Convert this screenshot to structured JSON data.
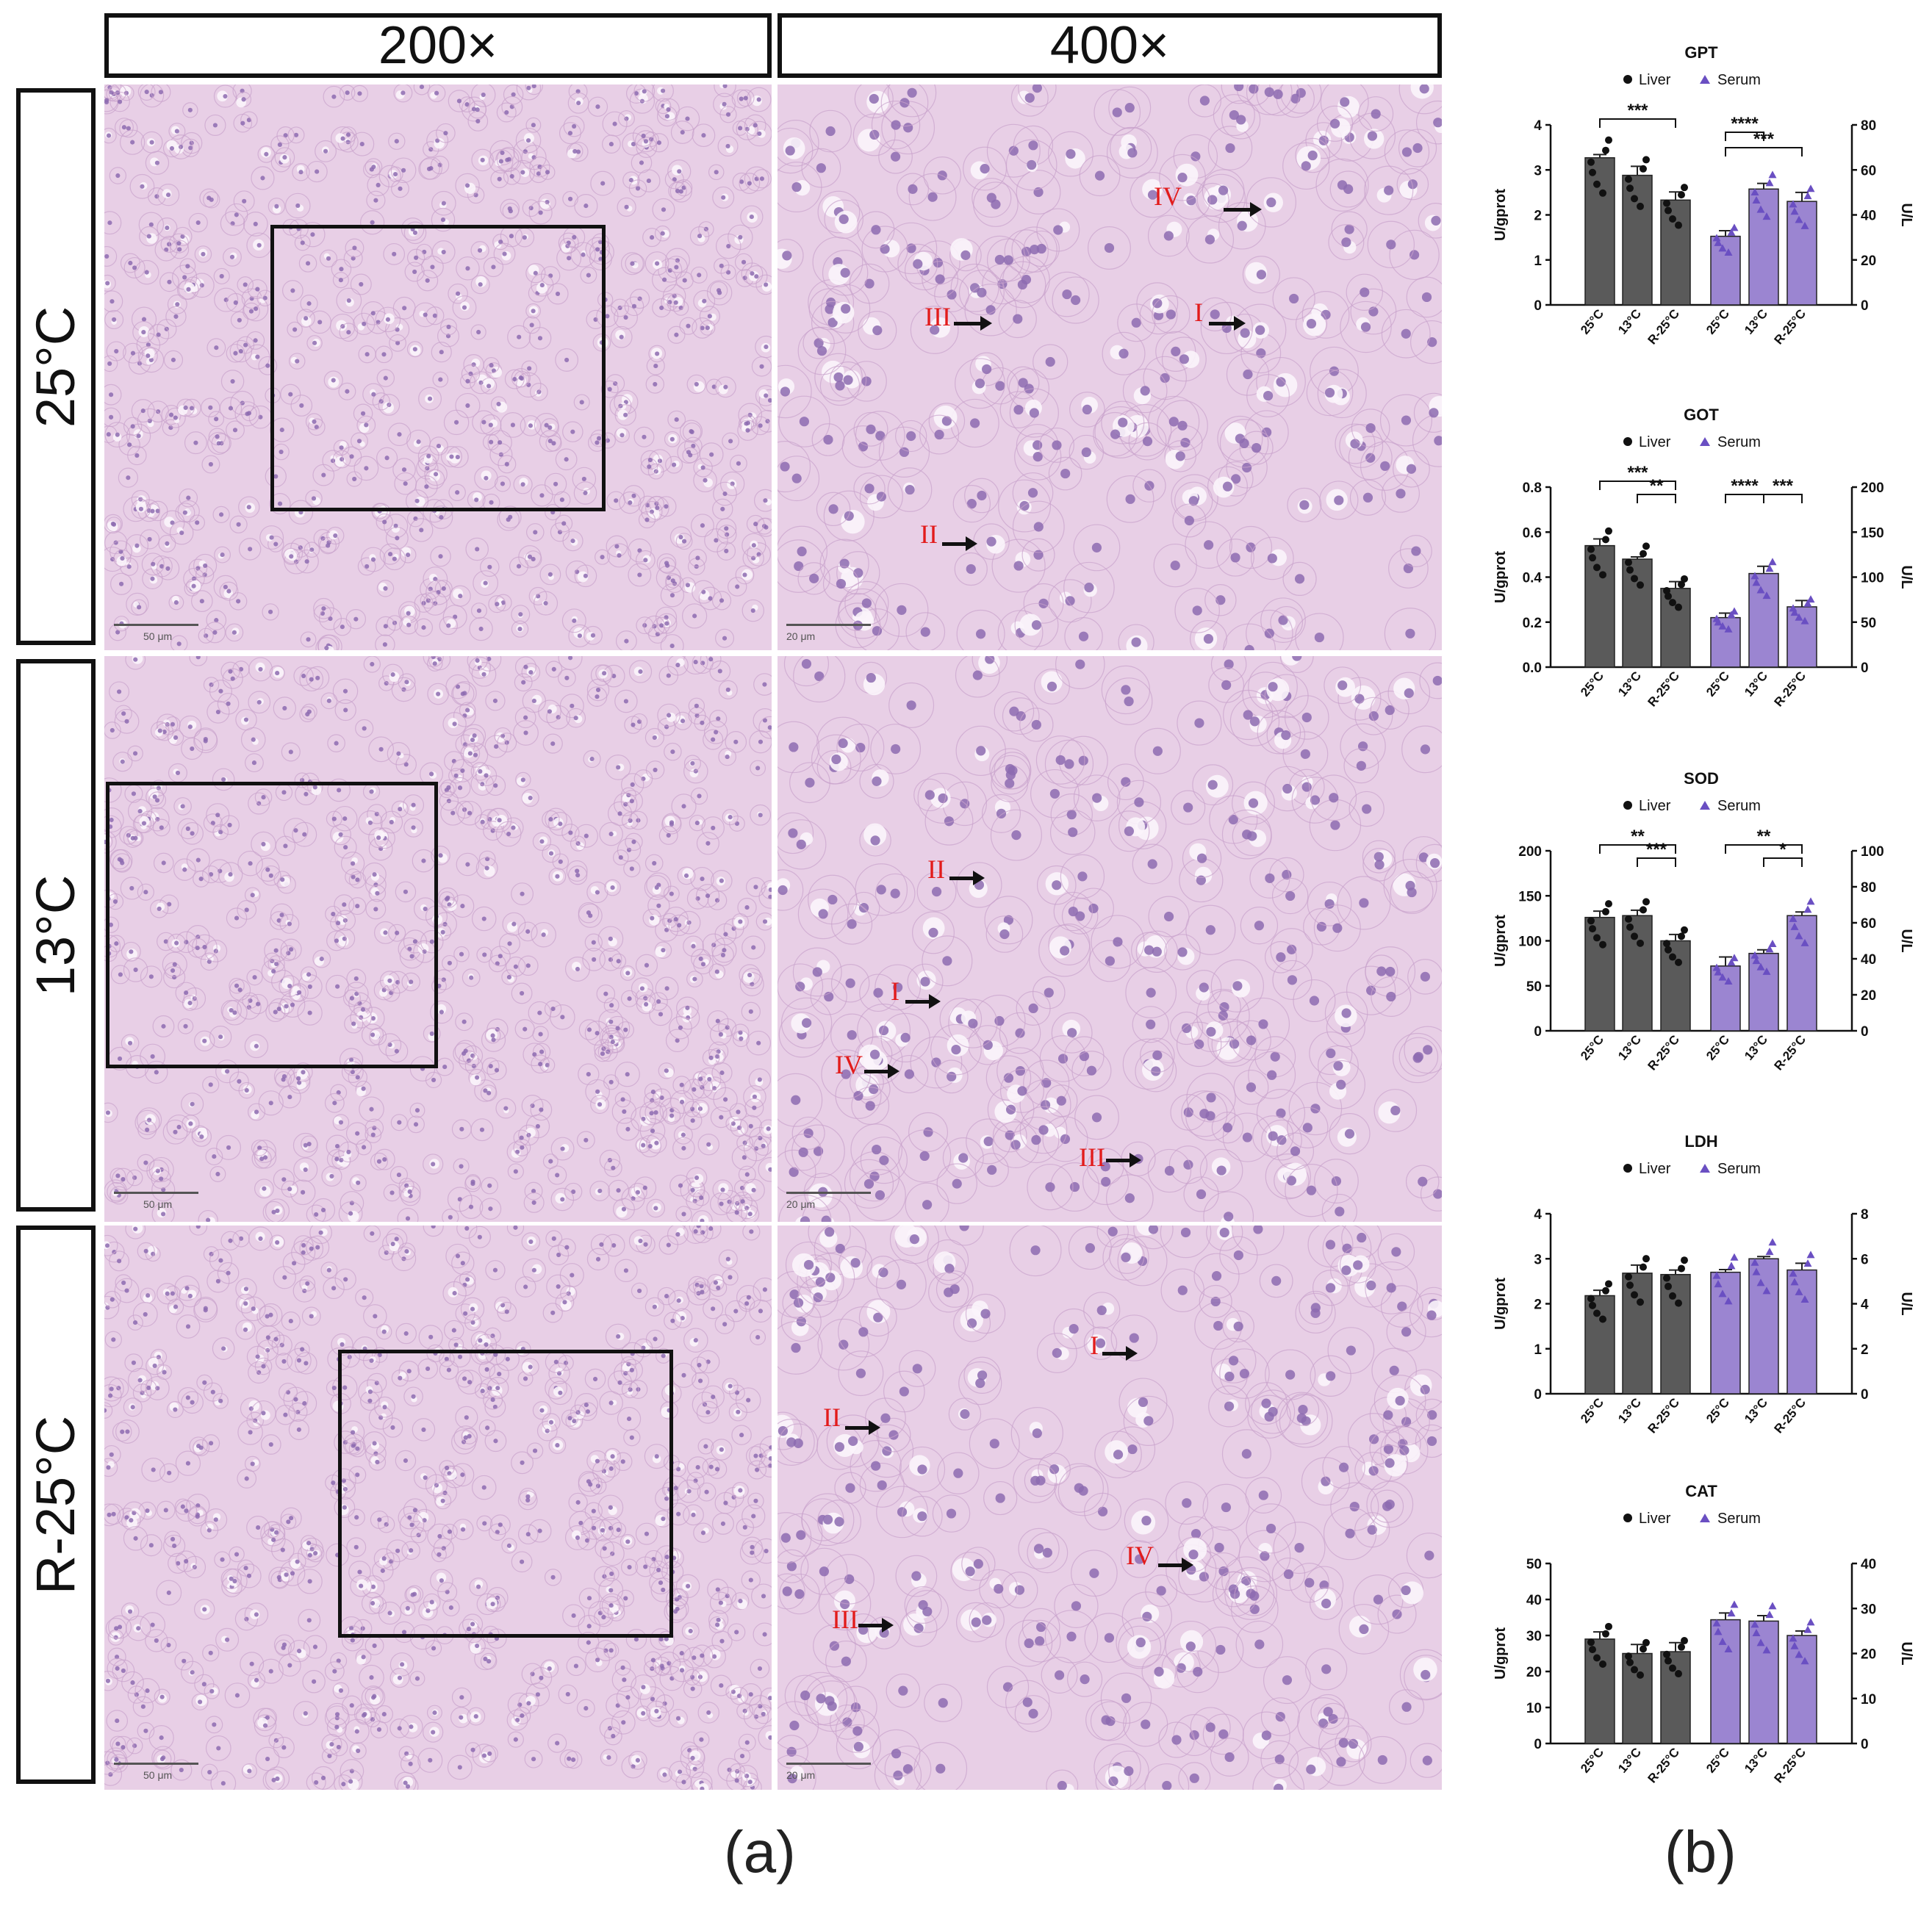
{
  "headers": {
    "col1": "200×",
    "col2": "400×"
  },
  "rows": [
    {
      "label": "25°C",
      "scale200": "50 μm",
      "scale400": "20 μm",
      "arrows": [
        {
          "text": "IV"
        },
        {
          "text": "III"
        },
        {
          "text": "I"
        },
        {
          "text": "II"
        }
      ]
    },
    {
      "label": "13°C",
      "scale200": "50 μm",
      "scale400": "20 μm",
      "arrows": [
        {
          "text": "II"
        },
        {
          "text": "I"
        },
        {
          "text": "IV"
        },
        {
          "text": "III"
        }
      ]
    },
    {
      "label": "R-25°C",
      "scale200": "50 μm",
      "scale400": "20 μm",
      "arrows": [
        {
          "text": "I"
        },
        {
          "text": "II"
        },
        {
          "text": "IV"
        },
        {
          "text": "III"
        }
      ]
    }
  ],
  "panel_labels": {
    "a": "(a)",
    "b": "(b)"
  },
  "colors": {
    "liver": "#5a5a5a",
    "serum": "#9b85d1",
    "serum_marker": "#6a4fc2",
    "tissue": "#e8cfe6",
    "nuclei": "#8d6bb0"
  },
  "chart_data": [
    {
      "type": "bar",
      "title": "GPT",
      "legend": [
        "Liver",
        "Serum"
      ],
      "categories": [
        "25°C",
        "13°C",
        "R-25°C"
      ],
      "left_axis": {
        "label": "U/gprot",
        "range": [
          0,
          4
        ],
        "ticks": [
          "0",
          "1",
          "2",
          "3",
          "4"
        ]
      },
      "right_axis": {
        "label": "U/L",
        "range": [
          0,
          80
        ],
        "ticks": [
          "0",
          "20",
          "40",
          "60",
          "80"
        ]
      },
      "series": [
        {
          "name": "Liver",
          "axis": "left",
          "values": [
            3.27,
            2.88,
            2.33
          ],
          "errors": [
            0.07,
            0.2,
            0.18
          ]
        },
        {
          "name": "Serum",
          "axis": "right",
          "values": [
            30.5,
            51.5,
            46.0
          ],
          "errors": [
            2.5,
            2.5,
            4.0
          ]
        }
      ],
      "significance": [
        {
          "series": "Liver",
          "from": 0,
          "to": 2,
          "label": "***",
          "level": 0.2
        },
        {
          "series": "Serum",
          "from": 0,
          "to": 1,
          "label": "****",
          "level": 0.5
        },
        {
          "series": "Serum",
          "from": 0,
          "to": 2,
          "label": "***",
          "level": 0.85
        }
      ]
    },
    {
      "type": "bar",
      "title": "GOT",
      "legend": [
        "Liver",
        "Serum"
      ],
      "categories": [
        "25°C",
        "13°C",
        "R-25°C"
      ],
      "left_axis": {
        "label": "U/gprot",
        "range": [
          0,
          0.8
        ],
        "ticks": [
          "0.0",
          "0.2",
          "0.4",
          "0.6",
          "0.8"
        ]
      },
      "right_axis": {
        "label": "U/L",
        "range": [
          0,
          200
        ],
        "ticks": [
          "0",
          "50",
          "100",
          "150",
          "200"
        ]
      },
      "series": [
        {
          "name": "Liver",
          "axis": "left",
          "values": [
            0.54,
            0.48,
            0.35
          ],
          "errors": [
            0.03,
            0.01,
            0.03
          ]
        },
        {
          "name": "Serum",
          "axis": "right",
          "values": [
            55,
            104,
            67
          ],
          "errors": [
            5,
            8,
            7
          ]
        }
      ],
      "significance": [
        {
          "series": "Liver",
          "from": 0,
          "to": 2,
          "label": "***",
          "level": 0.2
        },
        {
          "series": "Liver",
          "from": 1,
          "to": 2,
          "label": "**",
          "level": 0.5
        },
        {
          "series": "Serum",
          "from": 0,
          "to": 1,
          "label": "****",
          "level": 0.5
        },
        {
          "series": "Serum",
          "from": 1,
          "to": 2,
          "label": "***",
          "level": 0.5
        }
      ]
    },
    {
      "type": "bar",
      "title": "SOD",
      "legend": [
        "Liver",
        "Serum"
      ],
      "categories": [
        "25°C",
        "13°C",
        "R-25°C"
      ],
      "left_axis": {
        "label": "U/gprot",
        "range": [
          0,
          200
        ],
        "ticks": [
          "0",
          "50",
          "100",
          "150",
          "200"
        ]
      },
      "right_axis": {
        "label": "U/L",
        "range": [
          0,
          100
        ],
        "ticks": [
          "0",
          "20",
          "40",
          "60",
          "80",
          "100"
        ]
      },
      "series": [
        {
          "name": "Liver",
          "axis": "left",
          "values": [
            126,
            128,
            100
          ],
          "errors": [
            7,
            6,
            7
          ]
        },
        {
          "name": "Serum",
          "axis": "right",
          "values": [
            36,
            43,
            64
          ],
          "errors": [
            5,
            2,
            2
          ]
        }
      ],
      "significance": [
        {
          "series": "Liver",
          "from": 0,
          "to": 2,
          "label": "**",
          "level": 0.2
        },
        {
          "series": "Liver",
          "from": 1,
          "to": 2,
          "label": "***",
          "level": 0.5
        },
        {
          "series": "Serum",
          "from": 0,
          "to": 2,
          "label": "**",
          "level": 0.2
        },
        {
          "series": "Serum",
          "from": 1,
          "to": 2,
          "label": "*",
          "level": 0.5
        }
      ]
    },
    {
      "type": "bar",
      "title": "LDH",
      "legend": [
        "Liver",
        "Serum"
      ],
      "categories": [
        "25°C",
        "13°C",
        "R-25°C"
      ],
      "left_axis": {
        "label": "U/gprot",
        "range": [
          0,
          4
        ],
        "ticks": [
          "0",
          "1",
          "2",
          "3",
          "4"
        ]
      },
      "right_axis": {
        "label": "U/L",
        "range": [
          0,
          8
        ],
        "ticks": [
          "0",
          "2",
          "4",
          "6",
          "8"
        ]
      },
      "series": [
        {
          "name": "Liver",
          "axis": "left",
          "values": [
            2.18,
            2.68,
            2.65
          ],
          "errors": [
            0.12,
            0.18,
            0.1
          ]
        },
        {
          "name": "Serum",
          "axis": "right",
          "values": [
            5.4,
            6.0,
            5.5
          ],
          "errors": [
            0.12,
            0.1,
            0.3
          ]
        }
      ],
      "significance": []
    },
    {
      "type": "bar",
      "title": "CAT",
      "legend": [
        "Liver",
        "Serum"
      ],
      "categories": [
        "25°C",
        "13°C",
        "R-25°C"
      ],
      "left_axis": {
        "label": "U/gprot",
        "range": [
          0,
          50
        ],
        "ticks": [
          "0",
          "10",
          "20",
          "30",
          "40",
          "50"
        ]
      },
      "right_axis": {
        "label": "U/L",
        "range": [
          0,
          40
        ],
        "ticks": [
          "0",
          "10",
          "20",
          "30",
          "40"
        ]
      },
      "series": [
        {
          "name": "Liver",
          "axis": "left",
          "values": [
            29,
            25,
            25.5
          ],
          "errors": [
            2,
            2.5,
            2.5
          ]
        },
        {
          "name": "Serum",
          "axis": "right",
          "values": [
            27.5,
            27.2,
            24
          ],
          "errors": [
            1.5,
            1.2,
            1
          ]
        }
      ],
      "significance": []
    }
  ]
}
